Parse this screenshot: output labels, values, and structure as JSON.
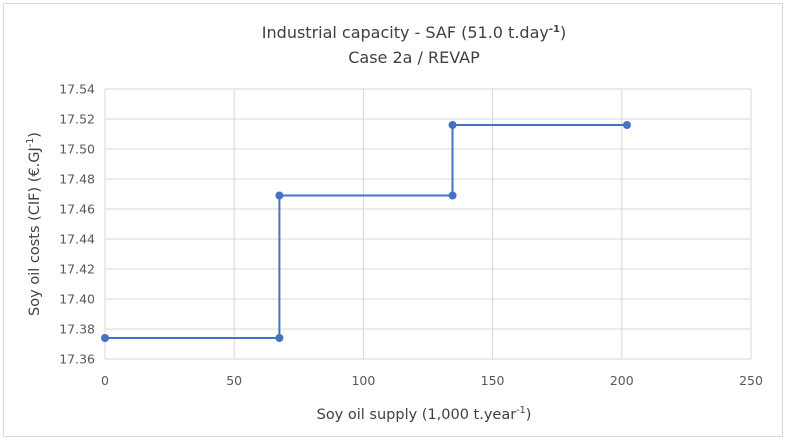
{
  "chart_data": {
    "type": "line",
    "step": "after",
    "title_line1": "Industrial capacity - SAF (51.0 t.day",
    "title_line1_sup": "-1",
    "title_line1_end": ")",
    "title_line2": "Case 2a / REVAP",
    "xlabel": "Soy oil supply (1,000 t.year",
    "xlabel_sup": "-1",
    "xlabel_end": ")",
    "ylabel": "Soy oil costs (CIF) (€.GJ",
    "ylabel_sup": "-1",
    "ylabel_end": ")",
    "xlim": [
      0,
      250
    ],
    "ylim": [
      17.36,
      17.54
    ],
    "x_ticks": [
      0,
      50,
      100,
      150,
      200,
      250
    ],
    "x_tick_labels": [
      "0",
      "50",
      "100",
      "150",
      "200",
      "250"
    ],
    "y_ticks": [
      17.36,
      17.38,
      17.4,
      17.42,
      17.44,
      17.46,
      17.48,
      17.5,
      17.52,
      17.54
    ],
    "y_tick_labels": [
      "17.36",
      "17.38",
      "17.40",
      "17.42",
      "17.44",
      "17.46",
      "17.48",
      "17.50",
      "17.52",
      "17.54"
    ],
    "grid": true,
    "series_color": "#4472c4",
    "series": [
      {
        "points": [
          {
            "x": 0,
            "y": 17.374
          },
          {
            "x": 67.5,
            "y": 17.374
          },
          {
            "x": 67.5,
            "y": 17.469
          },
          {
            "x": 134.5,
            "y": 17.469
          },
          {
            "x": 134.5,
            "y": 17.516
          },
          {
            "x": 202,
            "y": 17.516
          }
        ]
      }
    ]
  }
}
